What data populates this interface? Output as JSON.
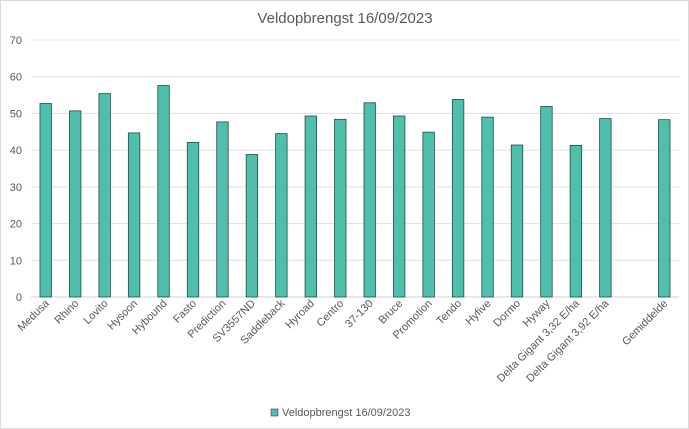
{
  "chart_data": {
    "type": "bar",
    "title": "Veldopbrengst 16/09/2023",
    "categories": [
      "Medusa",
      "Rhino",
      "Lovito",
      "Hysoon",
      "Hybound",
      "Fasto",
      "Prediction",
      "SV3557ND",
      "Saddleback",
      "Hyroad",
      "Centro",
      "37-130",
      "Bruce",
      "Promotion",
      "Tendo",
      "Hyfive",
      "Dormo",
      "Hyway",
      "Delta Gigant 3,32 E/ha",
      "Delta Gigant 3,92 E/ha",
      "",
      "Gemiddelde"
    ],
    "series": [
      {
        "name": "Veldopbrengst 16/09/2023",
        "values": [
          52.7,
          50.7,
          55.4,
          44.7,
          57.6,
          42.1,
          47.7,
          38.8,
          44.5,
          49.3,
          48.4,
          52.9,
          49.3,
          44.9,
          53.8,
          49.0,
          41.4,
          51.9,
          41.3,
          48.6,
          null,
          48.3
        ]
      }
    ],
    "ylim": [
      0,
      70
    ],
    "yticks": [
      0,
      10,
      20,
      30,
      40,
      50,
      60,
      70
    ],
    "grid": true,
    "legend_position": "bottom",
    "colors": {
      "bar_fill": "#4fbfab",
      "bar_stroke": "#1f4e48",
      "grid": "#e0e0e0",
      "axis": "#d0d0d0"
    }
  }
}
